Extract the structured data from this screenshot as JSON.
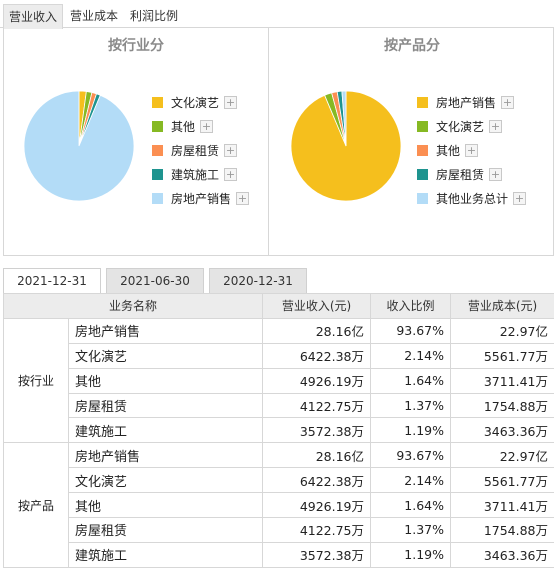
{
  "top_tabs": [
    {
      "label": "营业收入",
      "active": true
    },
    {
      "label": "营业成本",
      "active": false
    },
    {
      "label": "利润比例",
      "active": false
    }
  ],
  "industry_panel": {
    "title": "按行业分",
    "legend": [
      {
        "label": "文化演艺",
        "color": "#f5bf1d"
      },
      {
        "label": "其他",
        "color": "#86b923"
      },
      {
        "label": "房屋租赁",
        "color": "#fb8f52"
      },
      {
        "label": "建筑施工",
        "color": "#1e948f"
      },
      {
        "label": "房地产销售",
        "color": "#b3dcf7"
      }
    ],
    "pie_order": [
      "文化演艺",
      "其他",
      "房屋租赁",
      "建筑施工",
      "房地产销售"
    ],
    "pie_values": [
      2.14,
      1.64,
      1.37,
      1.19,
      93.67
    ]
  },
  "product_panel": {
    "title": "按产品分",
    "legend": [
      {
        "label": "房地产销售",
        "color": "#f5bf1d"
      },
      {
        "label": "文化演艺",
        "color": "#86b923"
      },
      {
        "label": "其他",
        "color": "#fb8f52"
      },
      {
        "label": "房屋租赁",
        "color": "#1e948f"
      },
      {
        "label": "其他业务总计",
        "color": "#b3dcf7"
      }
    ],
    "pie_values": [
      93.67,
      2.14,
      1.64,
      1.37,
      1.19
    ]
  },
  "plus_symbol": "+",
  "date_tabs": [
    {
      "label": "2021-12-31",
      "active": true
    },
    {
      "label": "2021-06-30",
      "active": false
    },
    {
      "label": "2020-12-31",
      "active": false
    }
  ],
  "table": {
    "headers": [
      "业务名称",
      "营业收入(元)",
      "收入比例",
      "营业成本(元)"
    ],
    "groups": [
      {
        "name": "按行业",
        "rows": [
          {
            "name": "房地产销售",
            "revenue": "28.16亿",
            "ratio": "93.67%",
            "cost": "22.97亿"
          },
          {
            "name": "文化演艺",
            "revenue": "6422.38万",
            "ratio": "2.14%",
            "cost": "5561.77万"
          },
          {
            "name": "其他",
            "revenue": "4926.19万",
            "ratio": "1.64%",
            "cost": "3711.41万"
          },
          {
            "name": "房屋租赁",
            "revenue": "4122.75万",
            "ratio": "1.37%",
            "cost": "1754.88万"
          },
          {
            "name": "建筑施工",
            "revenue": "3572.38万",
            "ratio": "1.19%",
            "cost": "3463.36万"
          }
        ]
      },
      {
        "name": "按产品",
        "rows": [
          {
            "name": "房地产销售",
            "revenue": "28.16亿",
            "ratio": "93.67%",
            "cost": "22.97亿"
          },
          {
            "name": "文化演艺",
            "revenue": "6422.38万",
            "ratio": "2.14%",
            "cost": "5561.77万"
          },
          {
            "name": "其他",
            "revenue": "4926.19万",
            "ratio": "1.64%",
            "cost": "3711.41万"
          },
          {
            "name": "房屋租赁",
            "revenue": "4122.75万",
            "ratio": "1.37%",
            "cost": "1754.88万"
          },
          {
            "name": "建筑施工",
            "revenue": "3572.38万",
            "ratio": "1.19%",
            "cost": "3463.36万"
          }
        ]
      }
    ]
  }
}
